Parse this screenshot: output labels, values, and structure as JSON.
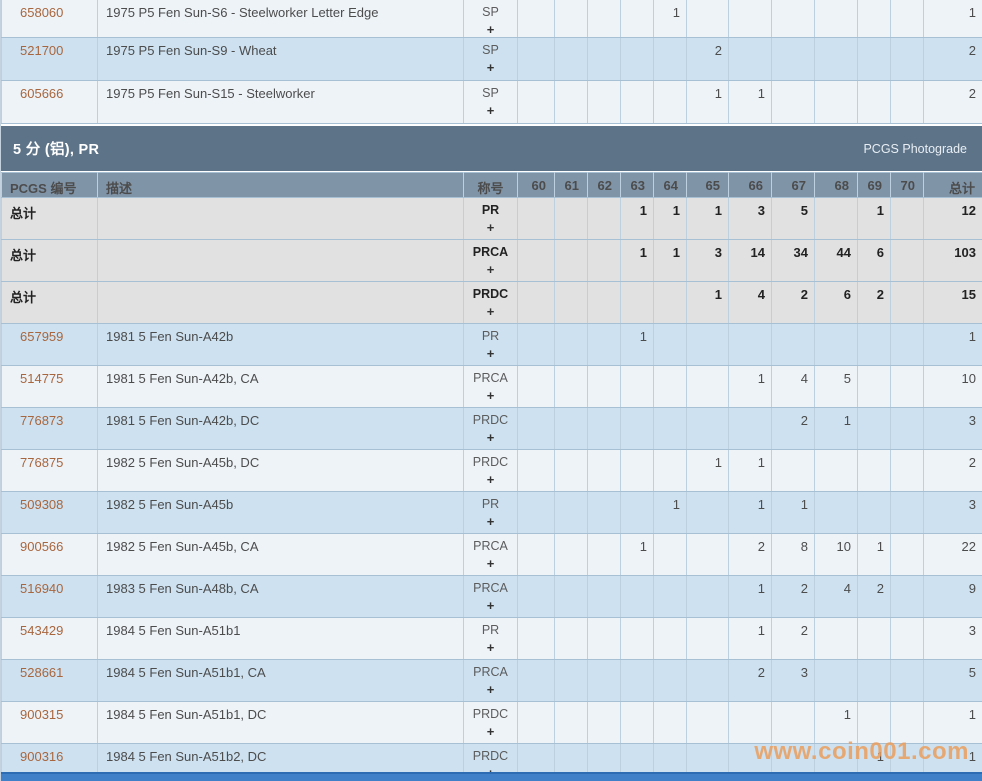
{
  "page": {
    "watermark": "www.coin001.com",
    "watermark_color": "#eb9f5e",
    "accent_bar_color": "#3f80c8",
    "link_color": "#a8663e"
  },
  "grades": [
    "60",
    "61",
    "62",
    "63",
    "64",
    "65",
    "66",
    "67",
    "68",
    "69",
    "70"
  ],
  "top_section": {
    "rows": [
      {
        "pcgs_no": "658060",
        "description": "1975 P5 Fen Sun-S6 - Steelworker Letter Edge",
        "designation": "SP",
        "values": {
          "64": "1"
        },
        "total": "1"
      },
      {
        "pcgs_no": "521700",
        "description": "1975 P5 Fen Sun-S9 - Wheat",
        "designation": "SP",
        "values": {
          "65": "2"
        },
        "total": "2"
      },
      {
        "pcgs_no": "605666",
        "description": "1975 P5 Fen Sun-S15 - Steelworker",
        "designation": "SP",
        "values": {
          "65": "1",
          "66": "1"
        },
        "total": "2"
      }
    ]
  },
  "section": {
    "title": "5 分 (铝), PR",
    "right_label": "PCGS Photograde"
  },
  "table": {
    "headers": {
      "pcgs_no": "PCGS 编号",
      "description": "描述",
      "designation": "称号",
      "total": "总计"
    },
    "totals_label": "总计",
    "plus": "+",
    "totals_rows": [
      {
        "designation": "PR",
        "values": {
          "63": "1",
          "64": "1",
          "65": "1",
          "66": "3",
          "67": "5",
          "69": "1"
        },
        "total": "12"
      },
      {
        "designation": "PRCA",
        "values": {
          "63": "1",
          "64": "1",
          "65": "3",
          "66": "14",
          "67": "34",
          "68": "44",
          "69": "6"
        },
        "total": "103"
      },
      {
        "designation": "PRDC",
        "values": {
          "65": "1",
          "66": "4",
          "67": "2",
          "68": "6",
          "69": "2"
        },
        "total": "15"
      }
    ],
    "rows": [
      {
        "pcgs_no": "657959",
        "description": "1981 5 Fen Sun-A42b",
        "designation": "PR",
        "values": {
          "63": "1"
        },
        "total": "1"
      },
      {
        "pcgs_no": "514775",
        "description": "1981 5 Fen Sun-A42b, CA",
        "designation": "PRCA",
        "values": {
          "66": "1",
          "67": "4",
          "68": "5"
        },
        "total": "10"
      },
      {
        "pcgs_no": "776873",
        "description": "1981 5 Fen Sun-A42b, DC",
        "designation": "PRDC",
        "values": {
          "67": "2",
          "68": "1"
        },
        "total": "3"
      },
      {
        "pcgs_no": "776875",
        "description": "1982 5 Fen Sun-A45b, DC",
        "designation": "PRDC",
        "values": {
          "65": "1",
          "66": "1"
        },
        "total": "2"
      },
      {
        "pcgs_no": "509308",
        "description": "1982 5 Fen Sun-A45b",
        "designation": "PR",
        "values": {
          "64": "1",
          "66": "1",
          "67": "1"
        },
        "total": "3"
      },
      {
        "pcgs_no": "900566",
        "description": "1982 5 Fen Sun-A45b, CA",
        "designation": "PRCA",
        "values": {
          "63": "1",
          "66": "2",
          "67": "8",
          "68": "10",
          "69": "1"
        },
        "total": "22"
      },
      {
        "pcgs_no": "516940",
        "description": "1983 5 Fen Sun-A48b, CA",
        "designation": "PRCA",
        "values": {
          "66": "1",
          "67": "2",
          "68": "4",
          "69": "2"
        },
        "total": "9"
      },
      {
        "pcgs_no": "543429",
        "description": "1984 5 Fen Sun-A51b1",
        "designation": "PR",
        "values": {
          "66": "1",
          "67": "2"
        },
        "total": "3"
      },
      {
        "pcgs_no": "528661",
        "description": "1984 5 Fen Sun-A51b1, CA",
        "designation": "PRCA",
        "values": {
          "66": "2",
          "67": "3"
        },
        "total": "5"
      },
      {
        "pcgs_no": "900315",
        "description": "1984 5 Fen Sun-A51b1, DC",
        "designation": "PRDC",
        "values": {
          "68": "1"
        },
        "total": "1"
      },
      {
        "pcgs_no": "900316",
        "description": "1984 5 Fen Sun-A51b2, DC",
        "designation": "PRDC",
        "values": {
          "69": "1"
        },
        "total": "1"
      }
    ]
  }
}
